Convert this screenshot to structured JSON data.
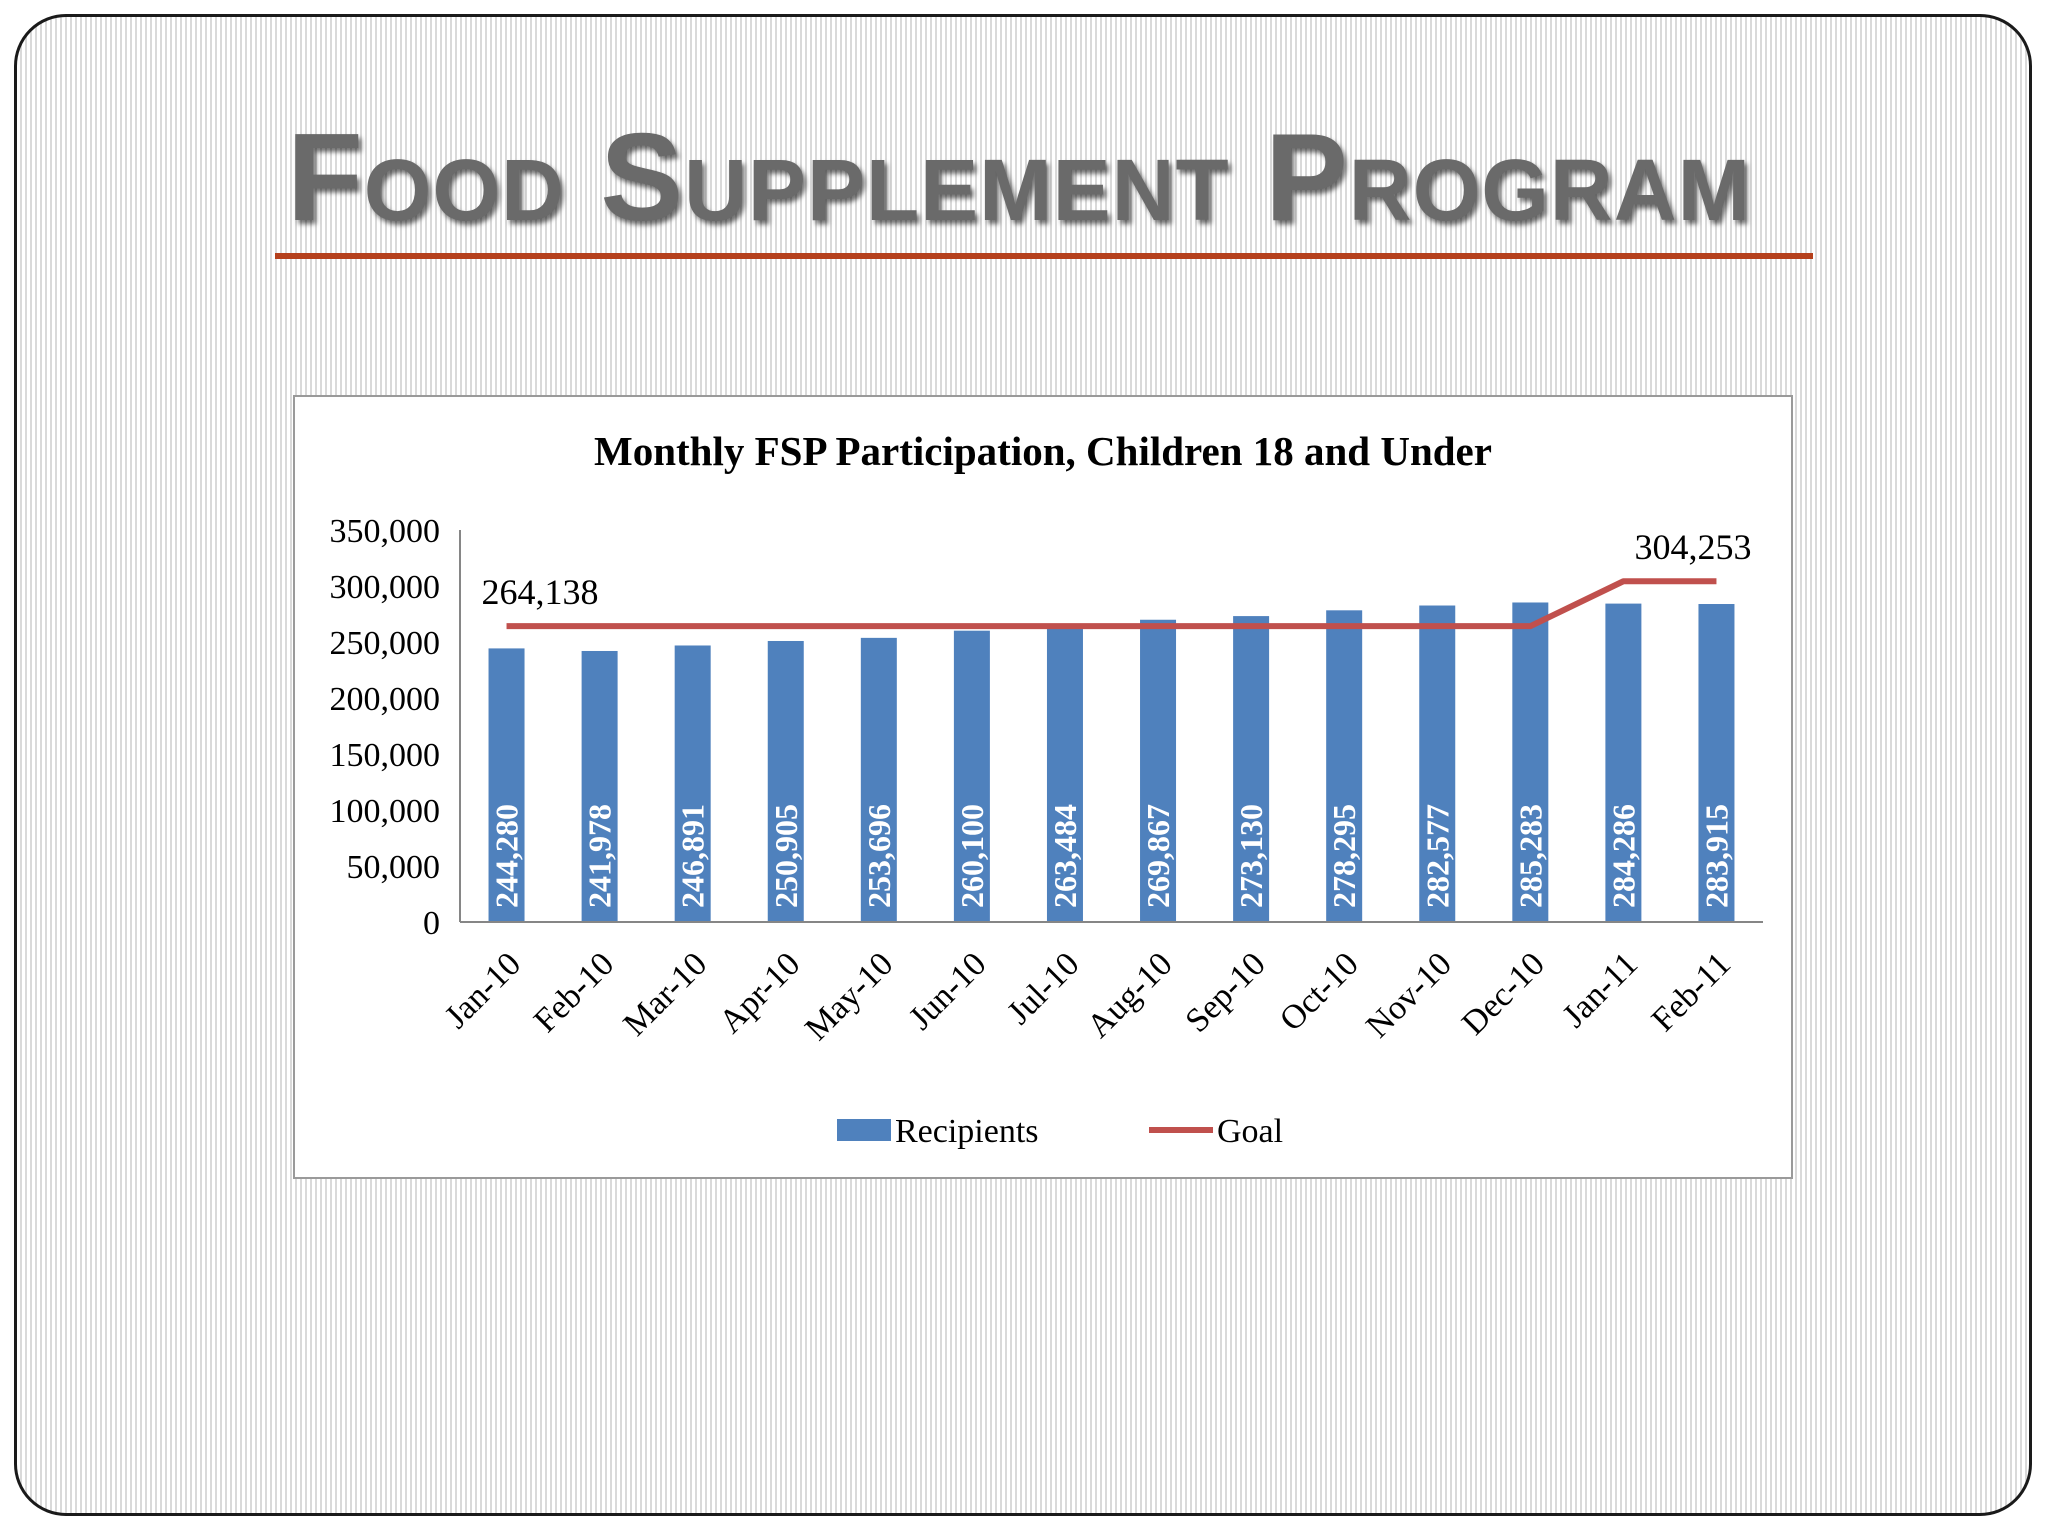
{
  "slide": {
    "title": "Food Supplement Program"
  },
  "colors": {
    "bar": "#4f81bd",
    "goal_line": "#c0504d",
    "title_rule": "#b5401c",
    "title_text": "#6a6a6a",
    "axis": "#868686"
  },
  "chart_data": {
    "type": "bar",
    "title": "Monthly FSP Participation, Children 18 and Under",
    "categories": [
      "Jan-10",
      "Feb-10",
      "Mar-10",
      "Apr-10",
      "May-10",
      "Jun-10",
      "Jul-10",
      "Aug-10",
      "Sep-10",
      "Oct-10",
      "Nov-10",
      "Dec-10",
      "Jan-11",
      "Feb-11"
    ],
    "series": [
      {
        "name": "Recipients",
        "kind": "bar",
        "values": [
          244280,
          241978,
          246891,
          250905,
          253696,
          260100,
          263484,
          269867,
          273130,
          278295,
          282577,
          285283,
          284286,
          283915
        ],
        "labels": [
          "244,280",
          "241,978",
          "246,891",
          "250,905",
          "253,696",
          "260,100",
          "263,484",
          "269,867",
          "273,130",
          "278,295",
          "282,577",
          "285,283",
          "284,286",
          "283,915"
        ]
      },
      {
        "name": "Goal",
        "kind": "line",
        "values": [
          264138,
          264138,
          264138,
          264138,
          264138,
          264138,
          264138,
          264138,
          264138,
          264138,
          264138,
          264138,
          304253,
          304253
        ],
        "annotations": [
          {
            "index": 0,
            "text": "264,138"
          },
          {
            "index": 13,
            "text": "304,253"
          }
        ]
      }
    ],
    "ylim": [
      0,
      350000
    ],
    "yticks": [
      0,
      50000,
      100000,
      150000,
      200000,
      250000,
      300000,
      350000
    ],
    "ytick_labels": [
      "0",
      "50,000",
      "100,000",
      "150,000",
      "200,000",
      "250,000",
      "300,000",
      "350,000"
    ],
    "xlabel": "",
    "ylabel": "",
    "grid": false,
    "legend_position": "bottom"
  }
}
